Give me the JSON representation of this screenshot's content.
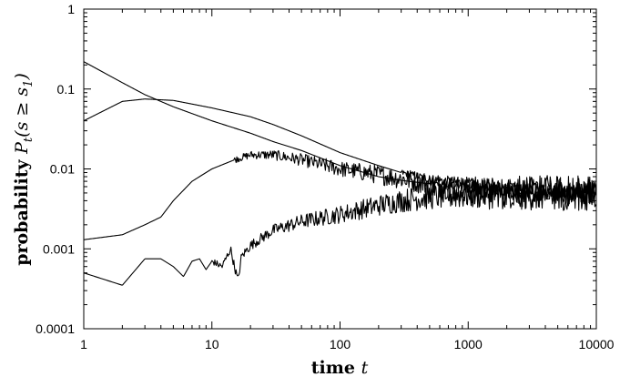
{
  "chart_data": {
    "type": "line",
    "xscale": "log",
    "yscale": "log",
    "xlim": [
      1,
      10000
    ],
    "ylim": [
      0.0001,
      1
    ],
    "xticks": [
      1,
      10,
      100,
      1000,
      10000
    ],
    "xtick_labels": [
      "1",
      "10",
      "100",
      "1000",
      "10000"
    ],
    "yticks": [
      0.0001,
      0.001,
      0.01,
      0.1,
      1
    ],
    "ytick_labels": [
      "0.0001",
      "0.001",
      "0.01",
      "0.1",
      "1"
    ],
    "xlabel": {
      "text": "time ",
      "var": "t"
    },
    "ylabel": {
      "text": "probability ",
      "var": "P",
      "sub": "t",
      "cond": "(s ≥ s",
      "cond_sub": "1",
      "cond_end": ")"
    },
    "grid": false,
    "legend": null,
    "series": [
      {
        "x": [
          1,
          2,
          3,
          5,
          10,
          20,
          30,
          50,
          100,
          200,
          300,
          500,
          1000,
          2000,
          5000,
          10000
        ],
        "y": [
          0.22,
          0.12,
          0.085,
          0.06,
          0.04,
          0.028,
          0.022,
          0.017,
          0.011,
          0.008,
          0.0072,
          0.0065,
          0.006,
          0.0055,
          0.005,
          0.005
        ],
        "noise_from": 500
      },
      {
        "x": [
          1,
          2,
          3,
          5,
          10,
          20,
          30,
          50,
          100,
          200,
          300,
          500,
          1000,
          2000,
          5000,
          10000
        ],
        "y": [
          0.04,
          0.07,
          0.075,
          0.072,
          0.058,
          0.045,
          0.036,
          0.026,
          0.016,
          0.011,
          0.009,
          0.0075,
          0.0065,
          0.0055,
          0.005,
          0.005
        ],
        "noise_from": 300
      },
      {
        "x": [
          1,
          2,
          3,
          4,
          5,
          7,
          10,
          15,
          20,
          30,
          50,
          100,
          200,
          500,
          1000,
          2000,
          5000,
          10000
        ],
        "y": [
          0.0013,
          0.0015,
          0.002,
          0.0025,
          0.004,
          0.007,
          0.01,
          0.013,
          0.015,
          0.015,
          0.013,
          0.01,
          0.0085,
          0.0065,
          0.0055,
          0.005,
          0.005,
          0.005
        ],
        "noise_from": 15
      },
      {
        "x": [
          1,
          2,
          3,
          4,
          5,
          6,
          7,
          8,
          9,
          10,
          12,
          14,
          15,
          16,
          17,
          20,
          25,
          30,
          50,
          100,
          200,
          300,
          500,
          1000,
          2000,
          5000,
          10000
        ],
        "y": [
          0.0005,
          0.00035,
          0.00075,
          0.00075,
          0.0006,
          0.00045,
          0.0007,
          0.00075,
          0.00055,
          0.0007,
          0.0006,
          0.001,
          0.0006,
          0.0004,
          0.0008,
          0.0011,
          0.0014,
          0.0017,
          0.0022,
          0.0027,
          0.0035,
          0.004,
          0.0045,
          0.0048,
          0.005,
          0.005,
          0.005
        ],
        "noise_from": 10
      }
    ]
  }
}
